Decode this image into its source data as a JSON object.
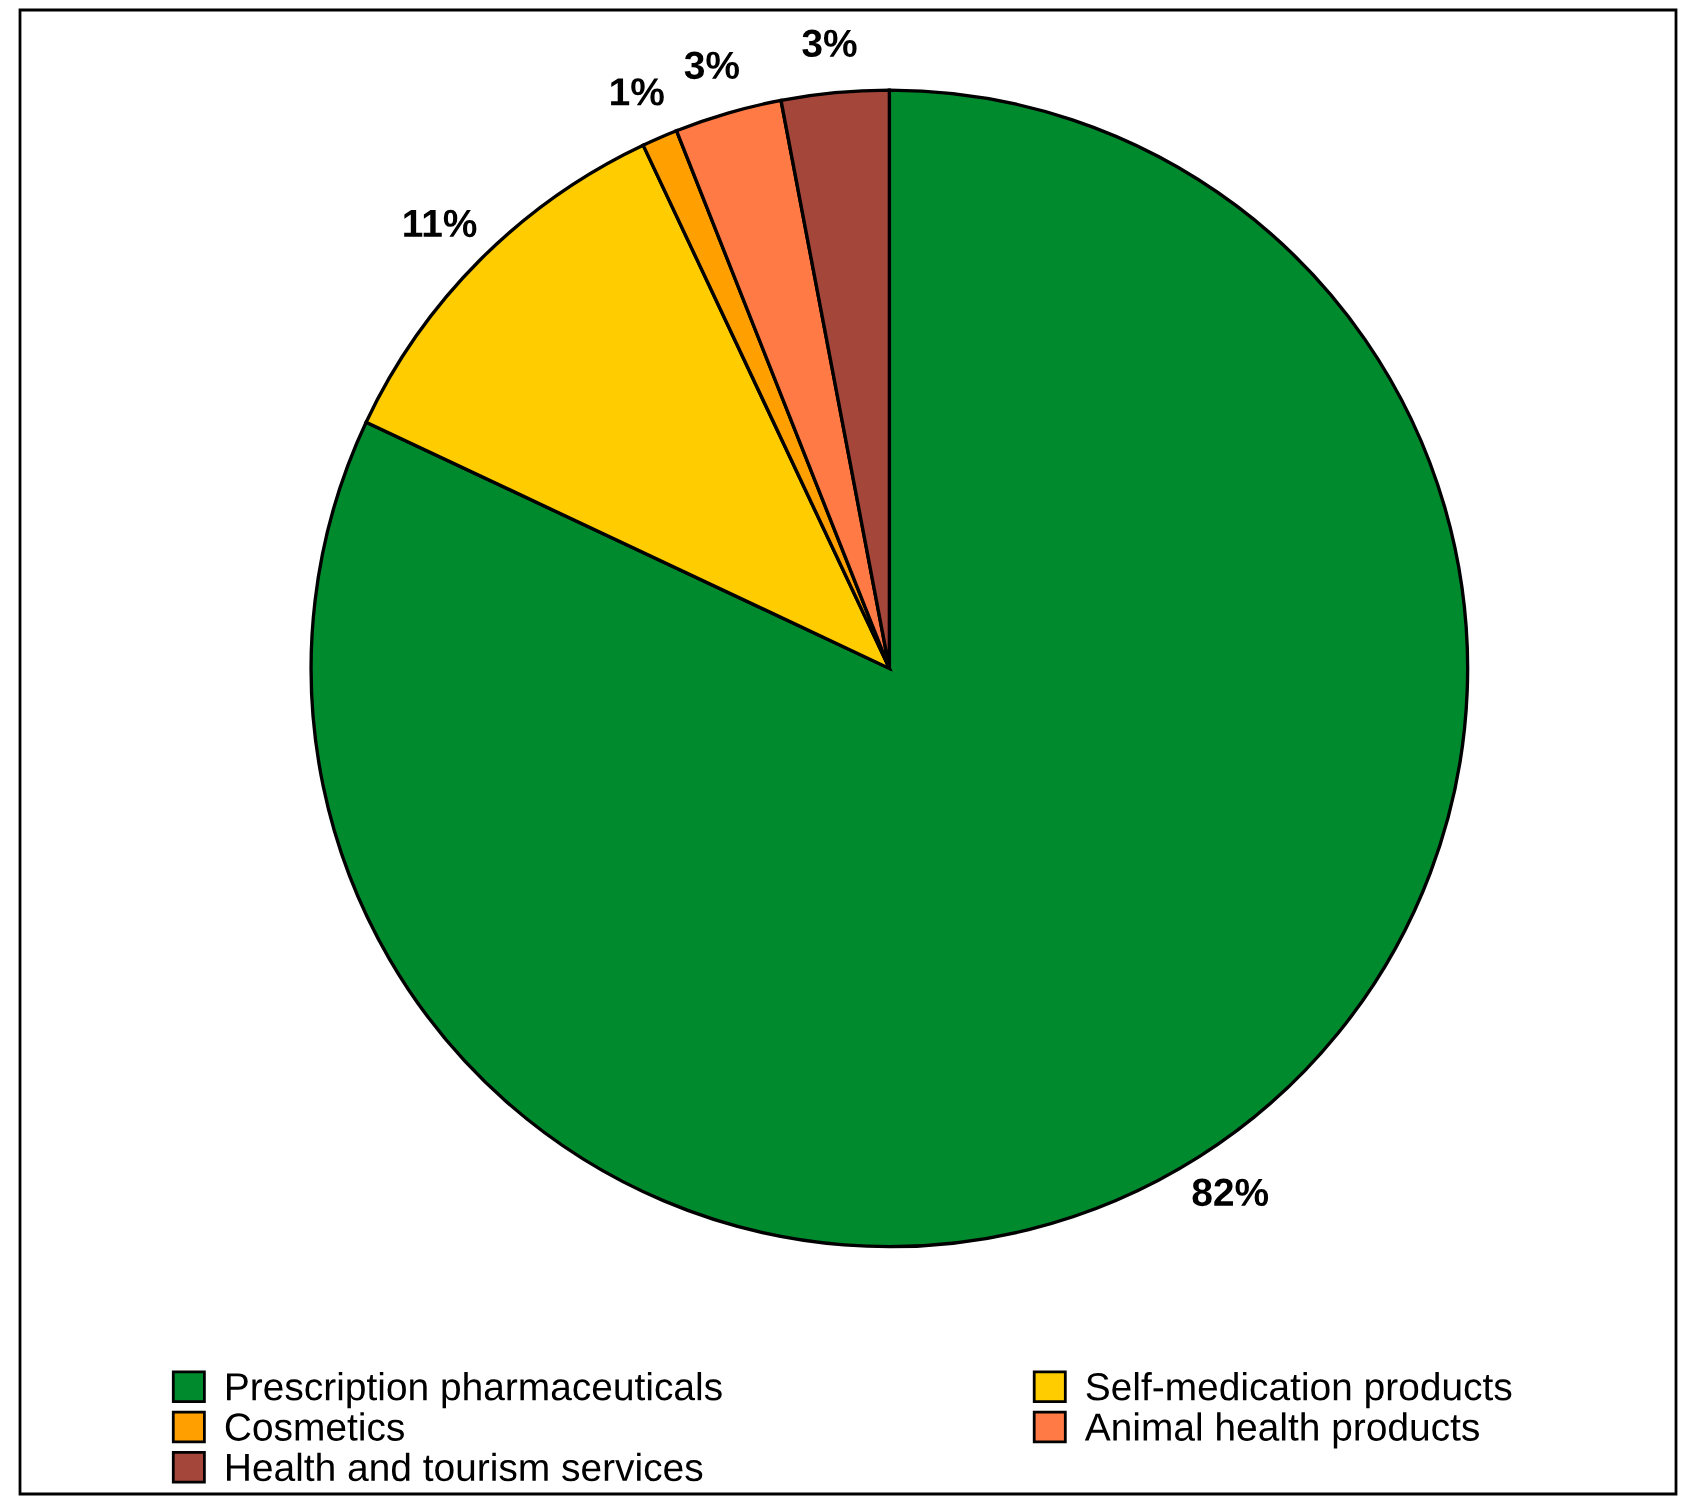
{
  "chart_data": {
    "type": "pie",
    "categories": [
      "Prescription pharmaceuticals",
      "Self-medication products",
      "Cosmetics",
      "Animal health products",
      "Health and tourism services"
    ],
    "values": [
      82,
      11,
      1,
      3,
      3
    ],
    "colors": [
      "#008a2e",
      "#ffcc00",
      "#ff9f00",
      "#ff7a45",
      "#a5463a"
    ],
    "value_labels": [
      "82%",
      "11%",
      "1%",
      "3%",
      "3%"
    ],
    "legend": "bottom"
  }
}
